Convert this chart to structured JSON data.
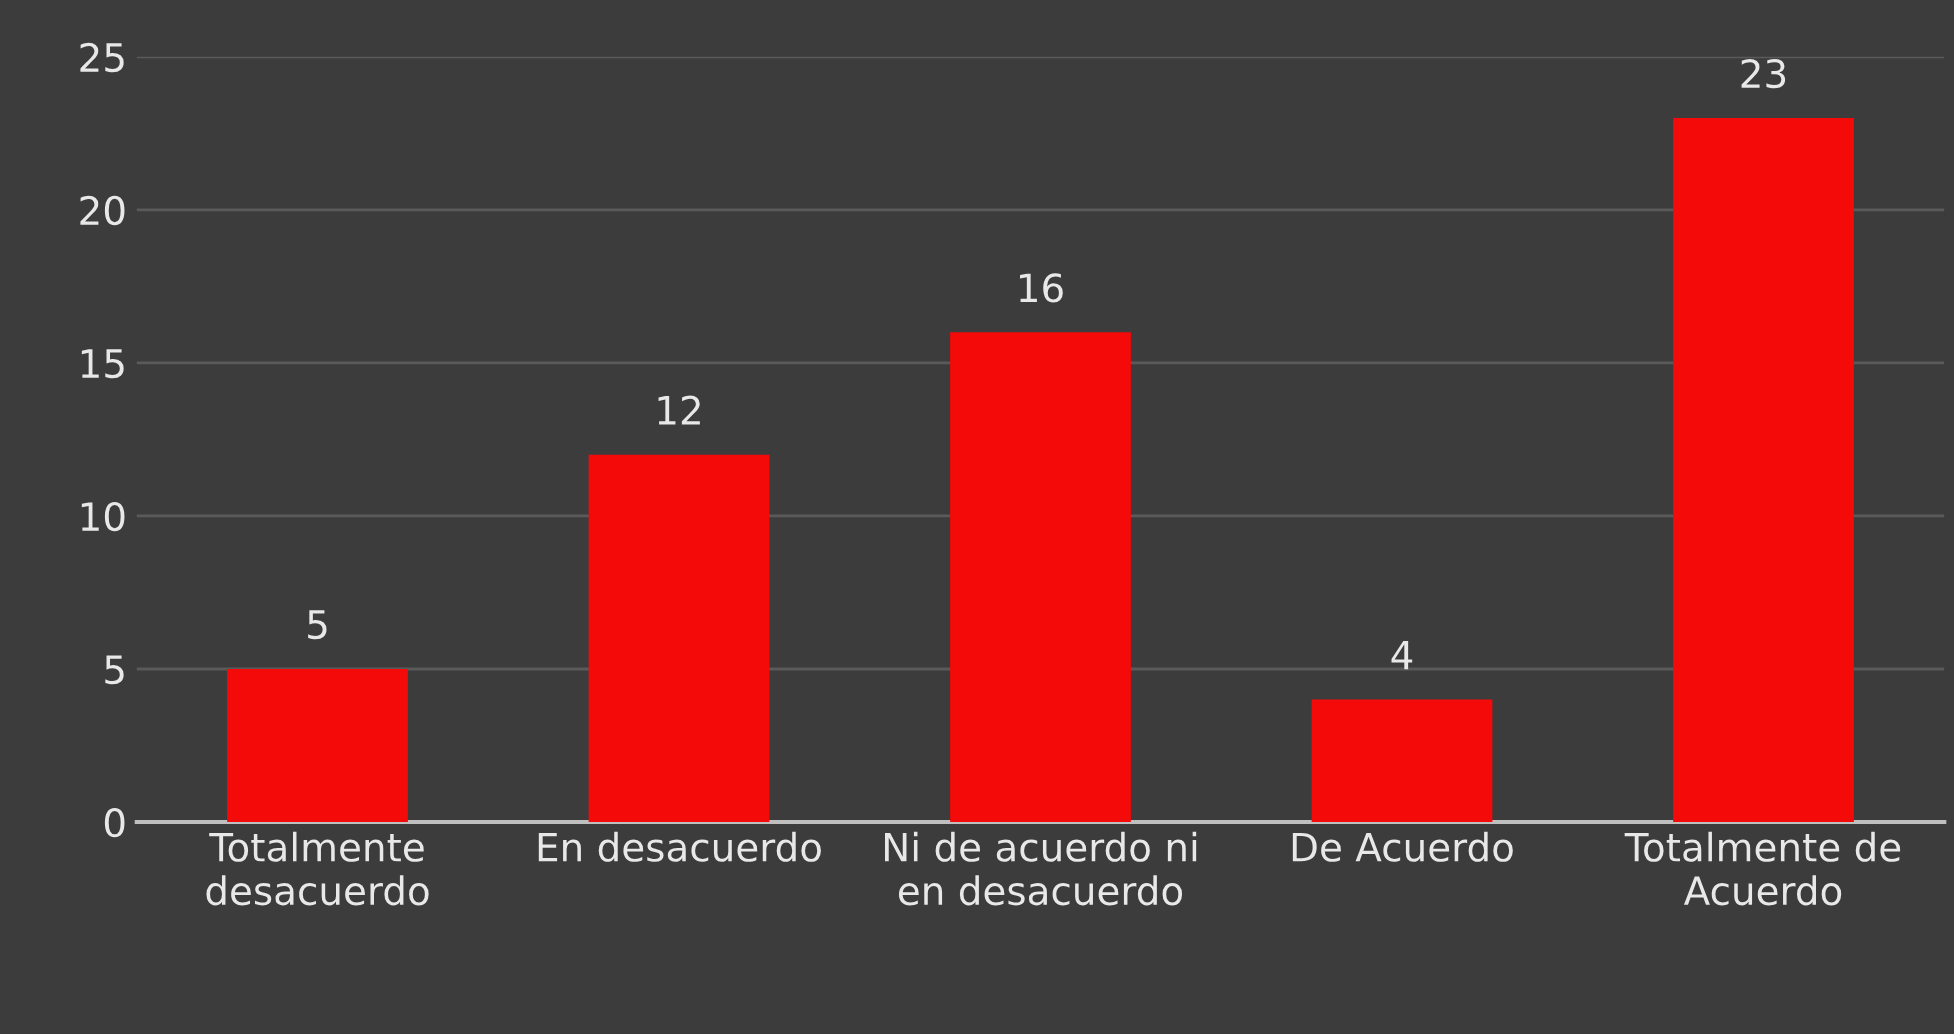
{
  "chart_data": {
    "type": "bar",
    "categories": [
      "Totalmente\ndesacuerdo",
      "En desacuerdo",
      "Ni de acuerdo ni\nen desacuerdo",
      "De Acuerdo",
      "Totalmente de\nAcuerdo"
    ],
    "values": [
      5,
      12,
      16,
      4,
      23
    ],
    "color": "#f50a0a",
    "ylim": [
      0,
      25
    ],
    "yticks": [
      0,
      5,
      10,
      15,
      20,
      25
    ],
    "grid": "y",
    "data_labels": true
  }
}
